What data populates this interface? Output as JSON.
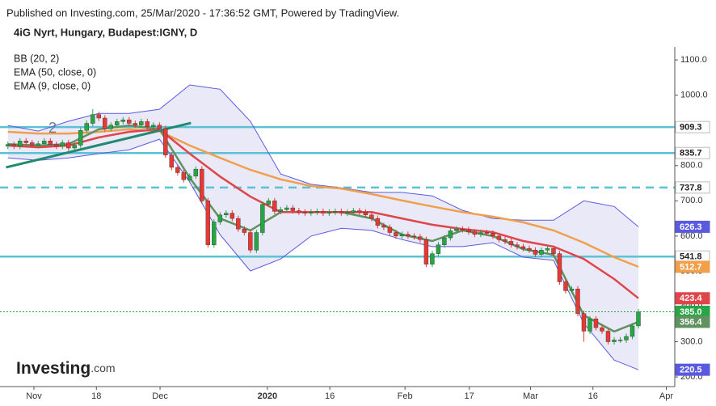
{
  "chart_data": {
    "type": "candlestick",
    "source": "Published on Investing.com, 25/Mar/2020 - 17:36:52 GMT, Powered by TradingView.",
    "title": "4iG Nyrt, Hungary, Budapest:IGNY, D",
    "logo": "Investing",
    "logo_suffix": ".com",
    "annotation": "2",
    "xlim": [
      -1.3,
      110
    ],
    "ylim": [
      191,
      1137
    ],
    "xticks": [
      {
        "value": 4.3,
        "label": "Nov"
      },
      {
        "value": 14.6,
        "label": "18"
      },
      {
        "value": 25.1,
        "label": "Dec"
      },
      {
        "value": 42.8,
        "label": "2020"
      },
      {
        "value": 53.1,
        "label": "16"
      },
      {
        "value": 65.5,
        "label": "Feb"
      },
      {
        "value": 76.1,
        "label": "17"
      },
      {
        "value": 86.2,
        "label": "Mar"
      },
      {
        "value": 96.5,
        "label": "16"
      },
      {
        "value": 108.6,
        "label": "Apr"
      }
    ],
    "yticks": [
      {
        "value": 200,
        "label": "200.0"
      },
      {
        "value": 300,
        "label": "300.0"
      },
      {
        "value": 400,
        "label": "400.0"
      },
      {
        "value": 500,
        "label": "500.0"
      },
      {
        "value": 600,
        "label": "600.0"
      },
      {
        "value": 700,
        "label": "700.0"
      },
      {
        "value": 800,
        "label": "800.0"
      },
      {
        "value": 900,
        "label": "900.0"
      },
      {
        "value": 1000,
        "label": "1000.0"
      },
      {
        "value": 1100,
        "label": "1100.0"
      }
    ],
    "candles": {
      "up_color": "#26a644",
      "down_color": "#e53935",
      "last_label": "385.0",
      "open": [
        855,
        860,
        855,
        870,
        865,
        858,
        862,
        870,
        860,
        855,
        865,
        850,
        858,
        900,
        920,
        945,
        935,
        905,
        915,
        925,
        930,
        920,
        915,
        925,
        910,
        915,
        905,
        830,
        795,
        780,
        760,
        770,
        790,
        700,
        575,
        640,
        660,
        665,
        650,
        620,
        610,
        560,
        610,
        690,
        700,
        670,
        675,
        680,
        672,
        668,
        665,
        668,
        670,
        665,
        668,
        670,
        665,
        668,
        672,
        668,
        660,
        650,
        630,
        625,
        610,
        600,
        605,
        600,
        598,
        590,
        520,
        550,
        575,
        595,
        615,
        620,
        618,
        612,
        605,
        610,
        608,
        600,
        590,
        585,
        575,
        570,
        565,
        560,
        548,
        560,
        565,
        550,
        470,
        445,
        450,
        380,
        330,
        365,
        340,
        330,
        300,
        305,
        305,
        315,
        345
      ],
      "high": [
        868,
        868,
        878,
        878,
        873,
        870,
        878,
        878,
        868,
        873,
        873,
        866,
        908,
        928,
        960,
        953,
        943,
        923,
        933,
        938,
        938,
        928,
        933,
        933,
        923,
        923,
        913,
        838,
        803,
        788,
        778,
        798,
        798,
        708,
        648,
        668,
        673,
        673,
        658,
        628,
        618,
        618,
        698,
        708,
        708,
        683,
        688,
        688,
        680,
        676,
        676,
        678,
        678,
        676,
        678,
        678,
        676,
        680,
        680,
        676,
        668,
        658,
        638,
        633,
        618,
        613,
        613,
        608,
        606,
        598,
        558,
        583,
        603,
        623,
        628,
        628,
        626,
        620,
        618,
        618,
        616,
        608,
        598,
        593,
        583,
        578,
        573,
        568,
        568,
        573,
        573,
        558,
        478,
        458,
        458,
        388,
        373,
        373,
        348,
        338,
        313,
        313,
        323,
        353,
        393
      ],
      "low": [
        847,
        847,
        847,
        857,
        850,
        850,
        854,
        852,
        847,
        847,
        842,
        842,
        850,
        892,
        912,
        927,
        897,
        897,
        907,
        917,
        912,
        907,
        907,
        902,
        902,
        897,
        822,
        787,
        772,
        752,
        752,
        762,
        692,
        567,
        567,
        632,
        652,
        642,
        612,
        602,
        552,
        552,
        602,
        682,
        662,
        662,
        667,
        664,
        660,
        657,
        657,
        660,
        657,
        657,
        660,
        657,
        657,
        660,
        660,
        652,
        642,
        622,
        617,
        602,
        592,
        592,
        592,
        590,
        582,
        512,
        512,
        542,
        567,
        587,
        607,
        610,
        604,
        597,
        597,
        600,
        592,
        582,
        577,
        567,
        562,
        557,
        552,
        540,
        540,
        552,
        542,
        462,
        437,
        437,
        372,
        300,
        322,
        332,
        322,
        292,
        292,
        297,
        297,
        307,
        337
      ],
      "close": [
        860,
        855,
        870,
        865,
        858,
        862,
        870,
        860,
        855,
        865,
        850,
        858,
        900,
        920,
        945,
        935,
        905,
        915,
        925,
        930,
        920,
        915,
        925,
        910,
        915,
        905,
        830,
        795,
        780,
        760,
        770,
        790,
        700,
        575,
        640,
        660,
        665,
        650,
        620,
        610,
        560,
        610,
        690,
        700,
        670,
        675,
        680,
        672,
        668,
        665,
        668,
        670,
        665,
        668,
        670,
        665,
        668,
        672,
        668,
        660,
        650,
        630,
        625,
        610,
        600,
        605,
        600,
        598,
        590,
        520,
        550,
        575,
        595,
        615,
        620,
        618,
        612,
        605,
        610,
        608,
        600,
        590,
        585,
        575,
        570,
        565,
        560,
        548,
        560,
        565,
        550,
        470,
        445,
        450,
        380,
        330,
        365,
        340,
        330,
        300,
        305,
        305,
        315,
        345,
        385
      ]
    },
    "line_x": [
      0,
      5,
      10,
      15,
      20,
      25,
      30,
      35,
      40,
      45,
      50,
      55,
      60,
      65,
      70,
      75,
      80,
      85,
      90,
      95,
      100,
      104
    ],
    "series": [
      {
        "name": "BB (20, 2)",
        "color": "#5a5ae0",
        "basis_color": "#e0454a",
        "fill": "#e9e9f7",
        "upper": [
          914,
          898,
          926,
          948,
          948,
          960,
          1029,
          1017,
          926,
          776,
          747,
          737,
          724,
          724,
          714,
          673,
          650,
          645,
          645,
          700,
          684,
          626.3
        ],
        "basis": [
          857,
          852,
          857,
          880,
          896,
          903,
          834,
          769,
          712,
          668,
          668,
          668,
          668,
          650,
          632,
          620,
          611,
          586,
          570,
          535,
          478,
          423.4
        ],
        "lower": [
          822,
          815,
          822,
          834,
          845,
          875,
          753,
          604,
          501,
          535,
          600,
          622,
          616,
          590,
          570,
          570,
          581,
          540,
          531,
          352,
          248,
          220.5
        ]
      },
      {
        "name": "EMA (50, close, 0)",
        "color": "#f0a04b",
        "values": [
          896,
          891,
          891,
          896,
          903,
          898,
          857,
          822,
          788,
          761,
          742,
          735,
          719,
          701,
          684,
          668,
          655,
          639,
          616,
          581,
          540,
          512.7
        ]
      },
      {
        "name": "EMA (9, close, 0)",
        "color": "#5f925f",
        "values": [
          861,
          857,
          861,
          903,
          914,
          903,
          765,
          650,
          616,
          668,
          668,
          668,
          650,
          604,
          586,
          616,
          600,
          563,
          547,
          375,
          329,
          356.4
        ]
      }
    ],
    "levels": [
      909.3,
      835.7,
      737.8,
      541.8
    ],
    "level_styles": [
      "solid",
      "solid",
      "dashed",
      "solid"
    ],
    "level_color": "#5bc2d6",
    "trendline": {
      "x": [
        -0.3,
        30.2
      ],
      "values": [
        795,
        921
      ],
      "color": "#1f8a70"
    }
  }
}
